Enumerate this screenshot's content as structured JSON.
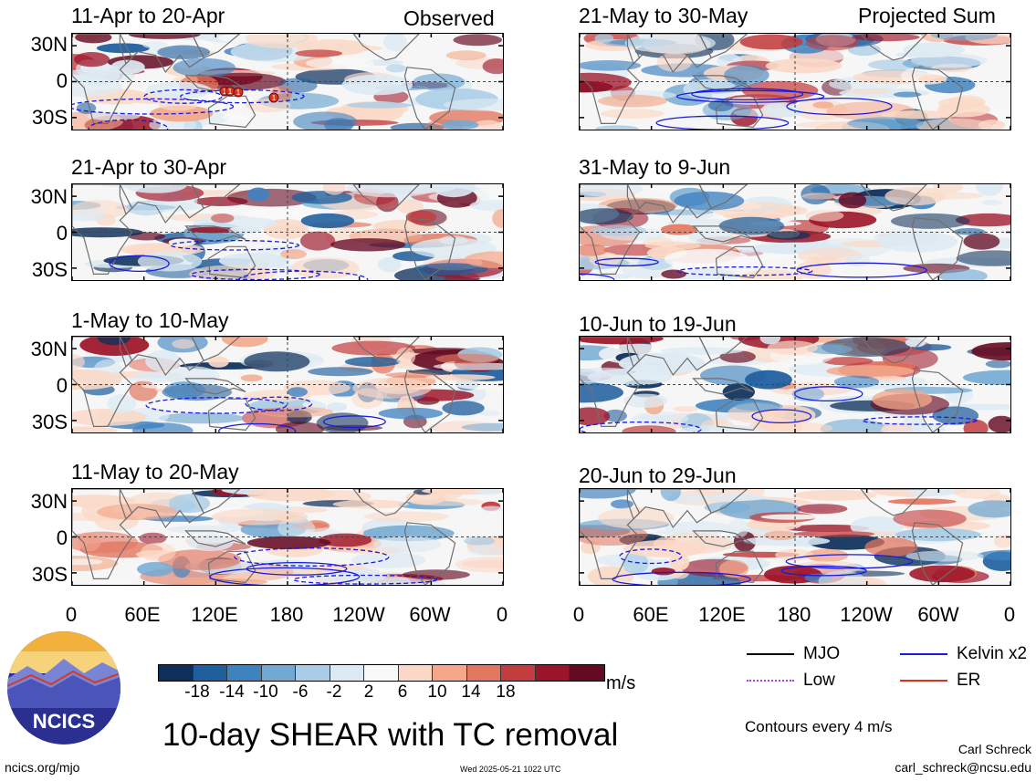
{
  "header": {
    "left_label": "Observed",
    "right_label": "Projected Sum"
  },
  "panels": [
    {
      "title": "11-Apr to 20-Apr",
      "column": 0,
      "row": 0
    },
    {
      "title": "21-Apr to 30-Apr",
      "column": 0,
      "row": 1
    },
    {
      "title": "1-May to 10-May",
      "column": 0,
      "row": 2
    },
    {
      "title": "11-May to 20-May",
      "column": 0,
      "row": 3
    },
    {
      "title": "21-May to 30-May",
      "column": 1,
      "row": 0
    },
    {
      "title": "31-May to 9-Jun",
      "column": 1,
      "row": 1
    },
    {
      "title": "10-Jun to 19-Jun",
      "column": 1,
      "row": 2
    },
    {
      "title": "20-Jun to 29-Jun",
      "column": 1,
      "row": 3
    }
  ],
  "axes": {
    "y_ticks": [
      "30N",
      "0",
      "30S"
    ],
    "x_ticks": [
      "0",
      "60E",
      "120E",
      "180",
      "120W",
      "60W",
      "0"
    ]
  },
  "colorbar": {
    "units": "m/s",
    "tick_labels": [
      "-18",
      "-14",
      "-10",
      "-6",
      "-2",
      "2",
      "6",
      "10",
      "14",
      "18"
    ],
    "colors": [
      "#0d2f5a",
      "#1f5f9e",
      "#3f82c0",
      "#72a9d2",
      "#a9cde6",
      "#ddeaf3",
      "#f9f9f9",
      "#fbd9c7",
      "#f4a889",
      "#e3765f",
      "#c33c3e",
      "#9c1428",
      "#650a22"
    ]
  },
  "legend": {
    "items": [
      {
        "label": "MJO",
        "color": "#000000"
      },
      {
        "label": "Kelvin x2",
        "color": "#1a1adc"
      },
      {
        "label": "Low",
        "color": "#a040e0"
      },
      {
        "label": "ER",
        "color": "#d8321c"
      }
    ],
    "contour_note": "Contours every 4 m/s"
  },
  "title": "10-day SHEAR with TC removal",
  "footer": {
    "site": "ncics.org/mjo",
    "timestamp": "Wed 2025-05-21 1022 UTC",
    "author": "Carl Schreck",
    "email": "carl_schreck@ncsu.edu",
    "logo_text": "NCICS"
  },
  "tc_markers": [
    "1",
    "1",
    "1",
    "1"
  ],
  "chart_data": {
    "type": "heatmap",
    "title": "10-day SHEAR with TC removal",
    "xlabel": "",
    "ylabel": "",
    "x_ticks": [
      "0",
      "60E",
      "120E",
      "180",
      "120W",
      "60W",
      "0"
    ],
    "y_ticks": [
      "30N",
      "0",
      "30S"
    ],
    "xlim_deg_east": [
      0,
      360
    ],
    "ylim_deg_north": [
      -40,
      40
    ],
    "colorbar_levels": [
      -18,
      -14,
      -10,
      -6,
      -2,
      2,
      6,
      10,
      14,
      18
    ],
    "units": "m/s",
    "contour_interval_m_s": 4,
    "grid": "dashed lines at 0 latitude and 180 longitude"
  }
}
